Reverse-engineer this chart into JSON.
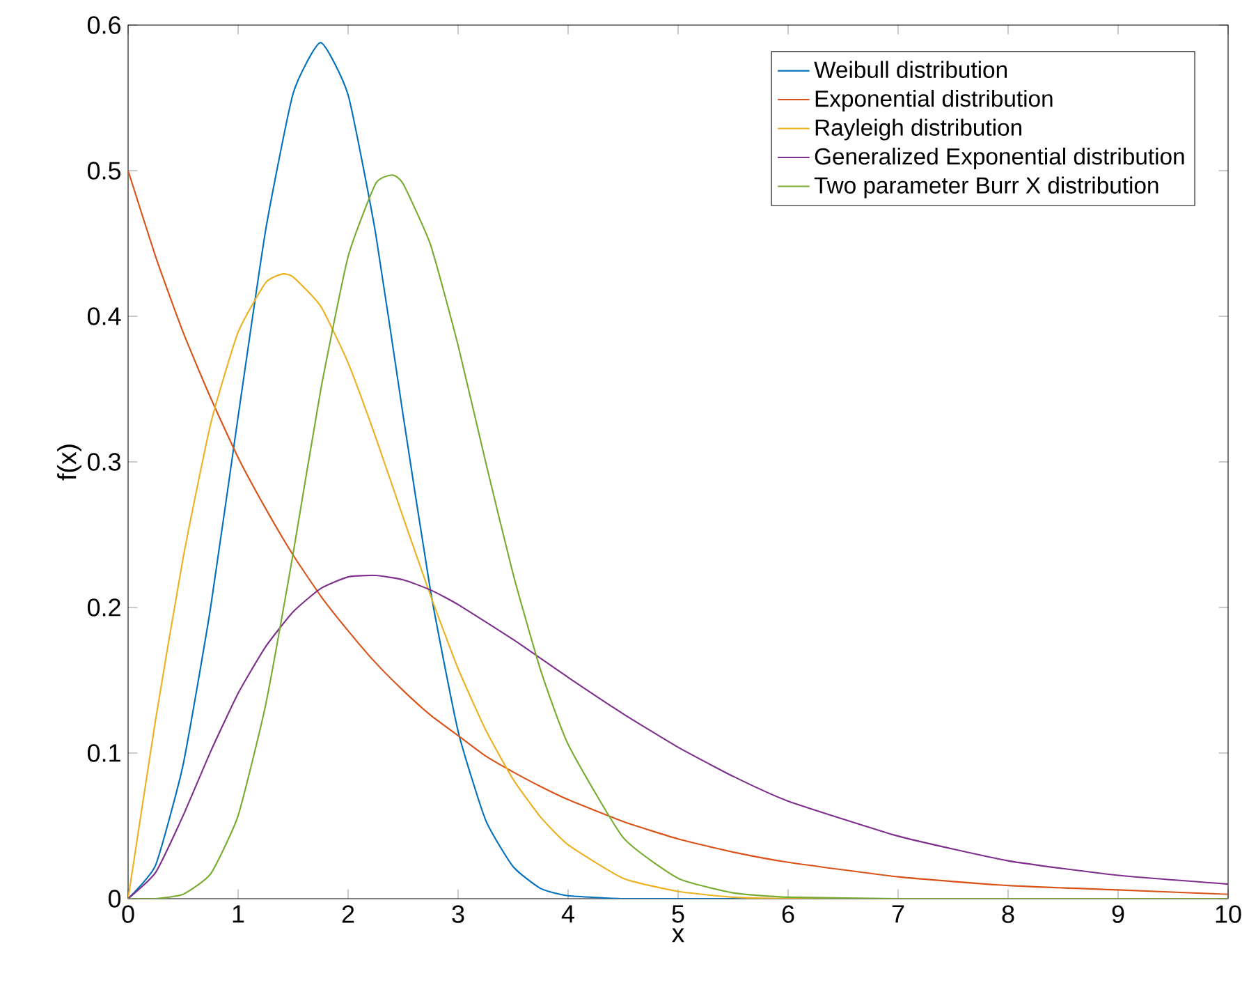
{
  "chart_data": {
    "type": "line",
    "xlabel": "x",
    "ylabel": "f(x)",
    "xlim": [
      0,
      10
    ],
    "ylim": [
      0,
      0.6
    ],
    "xticks": [
      0,
      1,
      2,
      3,
      4,
      5,
      6,
      7,
      8,
      9,
      10
    ],
    "yticks": [
      0,
      0.1,
      0.2,
      0.3,
      0.4,
      0.5,
      0.6
    ],
    "legend": "top right",
    "grid": false,
    "line_style": "solid",
    "series": [
      {
        "name": "Weibull distribution",
        "color": "#0072bd",
        "x": [
          0,
          0.25,
          0.5,
          0.75,
          1,
          1.25,
          1.5,
          1.75,
          2,
          2.25,
          2.5,
          2.75,
          3,
          3.25,
          3.5,
          3.75,
          4,
          4.5,
          5,
          6,
          7
        ],
        "values": [
          0,
          0.023,
          0.092,
          0.2,
          0.331,
          0.459,
          0.553,
          0.588,
          0.552,
          0.457,
          0.332,
          0.211,
          0.115,
          0.054,
          0.022,
          0.007,
          0.002,
          0,
          0,
          0,
          0
        ]
      },
      {
        "name": "Exponential distribution",
        "color": "#d95319",
        "x": [
          0,
          0.25,
          0.5,
          0.75,
          1,
          1.25,
          1.5,
          1.75,
          2,
          2.25,
          2.5,
          2.75,
          3,
          3.25,
          3.5,
          3.75,
          4,
          4.5,
          5,
          5.5,
          6,
          7,
          8,
          9,
          10
        ],
        "values": [
          0.5,
          0.441,
          0.389,
          0.344,
          0.303,
          0.268,
          0.236,
          0.208,
          0.184,
          0.162,
          0.143,
          0.126,
          0.112,
          0.098,
          0.087,
          0.077,
          0.068,
          0.053,
          0.041,
          0.032,
          0.025,
          0.015,
          0.009,
          0.006,
          0.003
        ]
      },
      {
        "name": "Rayleigh distribution",
        "color": "#edb120",
        "x": [
          0,
          0.25,
          0.5,
          0.75,
          1,
          1.25,
          1.4,
          1.5,
          1.75,
          2,
          2.25,
          2.5,
          2.75,
          3,
          3.25,
          3.5,
          3.75,
          4,
          4.5,
          5,
          5.5,
          6,
          7
        ],
        "values": [
          0,
          0.123,
          0.234,
          0.326,
          0.389,
          0.423,
          0.429,
          0.427,
          0.407,
          0.368,
          0.317,
          0.262,
          0.208,
          0.158,
          0.116,
          0.082,
          0.056,
          0.037,
          0.014,
          0.005,
          0.001,
          0,
          0
        ]
      },
      {
        "name": "Generalized Exponential distribution",
        "color": "#7e2f8e",
        "x": [
          0,
          0.25,
          0.5,
          0.75,
          1,
          1.25,
          1.5,
          1.75,
          2,
          2.25,
          2.5,
          2.75,
          3,
          3.5,
          4,
          4.5,
          5,
          5.5,
          6,
          7,
          8,
          9,
          10
        ],
        "values": [
          0,
          0.018,
          0.057,
          0.101,
          0.141,
          0.173,
          0.197,
          0.213,
          0.221,
          0.222,
          0.219,
          0.212,
          0.202,
          0.178,
          0.152,
          0.127,
          0.104,
          0.084,
          0.067,
          0.043,
          0.026,
          0.016,
          0.01
        ]
      },
      {
        "name": "Two parameter Burr X distribution",
        "color": "#77ac30",
        "x": [
          0,
          0.25,
          0.5,
          0.75,
          1,
          1.25,
          1.5,
          1.75,
          2,
          2.25,
          2.4,
          2.5,
          2.75,
          3,
          3.25,
          3.5,
          3.75,
          4,
          4.5,
          5,
          5.5,
          6,
          7,
          8,
          9,
          10
        ],
        "values": [
          0,
          0,
          0.003,
          0.017,
          0.057,
          0.133,
          0.237,
          0.349,
          0.441,
          0.491,
          0.497,
          0.491,
          0.449,
          0.38,
          0.3,
          0.223,
          0.157,
          0.106,
          0.042,
          0.014,
          0.004,
          0.001,
          0,
          0,
          0,
          0
        ]
      }
    ]
  }
}
